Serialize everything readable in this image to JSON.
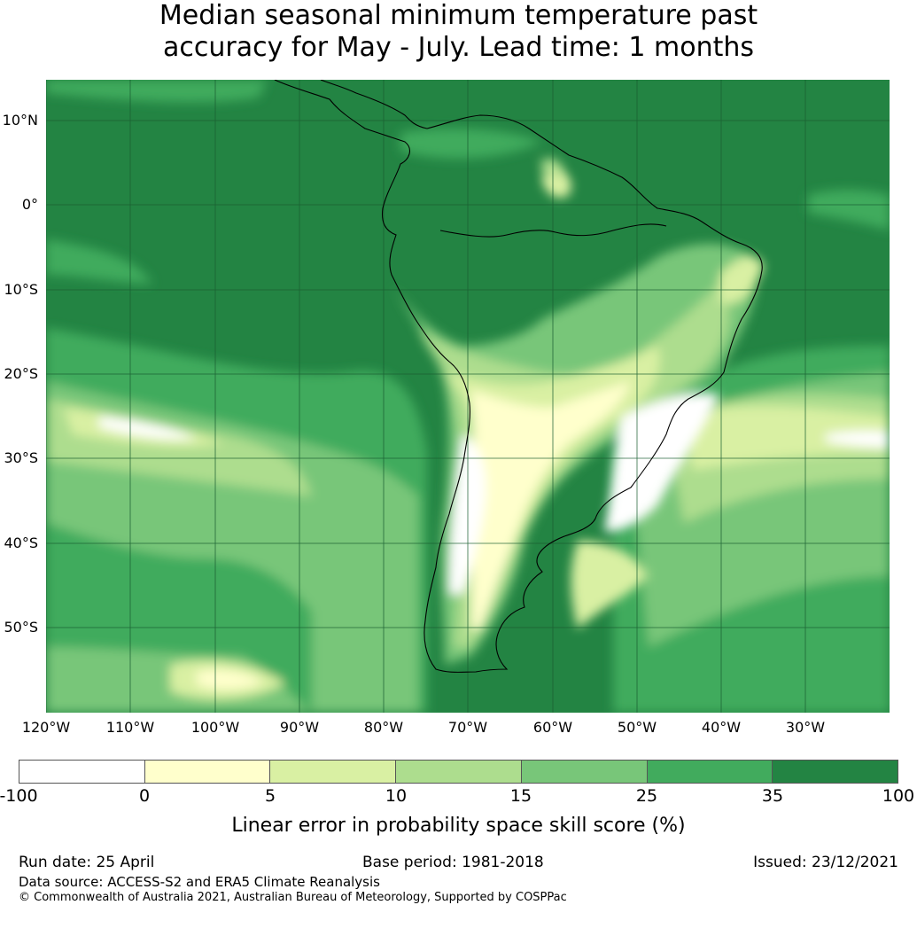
{
  "title_line1": "Median seasonal minimum temperature past",
  "title_line2": "accuracy for May - July. Lead time: 1 months",
  "lat_labels": [
    "10°N",
    "0°",
    "10°S",
    "20°S",
    "30°S",
    "40°S",
    "50°S"
  ],
  "lon_labels": [
    "120°W",
    "110°W",
    "100°W",
    "90°W",
    "80°W",
    "70°W",
    "60°W",
    "50°W",
    "40°W",
    "30°W"
  ],
  "colorbar": {
    "ticks": [
      "-100",
      "0",
      "5",
      "10",
      "15",
      "25",
      "35",
      "100"
    ],
    "colors": [
      "#ffffff",
      "#ffffcc",
      "#d9f0a3",
      "#addd8e",
      "#78c679",
      "#41ab5d",
      "#238443"
    ],
    "label": "Linear error in probability space skill score (%)"
  },
  "footer": {
    "run_date": "Run date: 25 April",
    "base_period": "Base period: 1981-2018",
    "issued": "Issued: 23/12/2021",
    "data_source": "Data source: ACCESS-S2 and ERA5 Climate Reanalysis",
    "copyright": "© Commonwealth of Australia 2021, Australian Bureau of Meteorology, Supported by COSPPac"
  }
}
